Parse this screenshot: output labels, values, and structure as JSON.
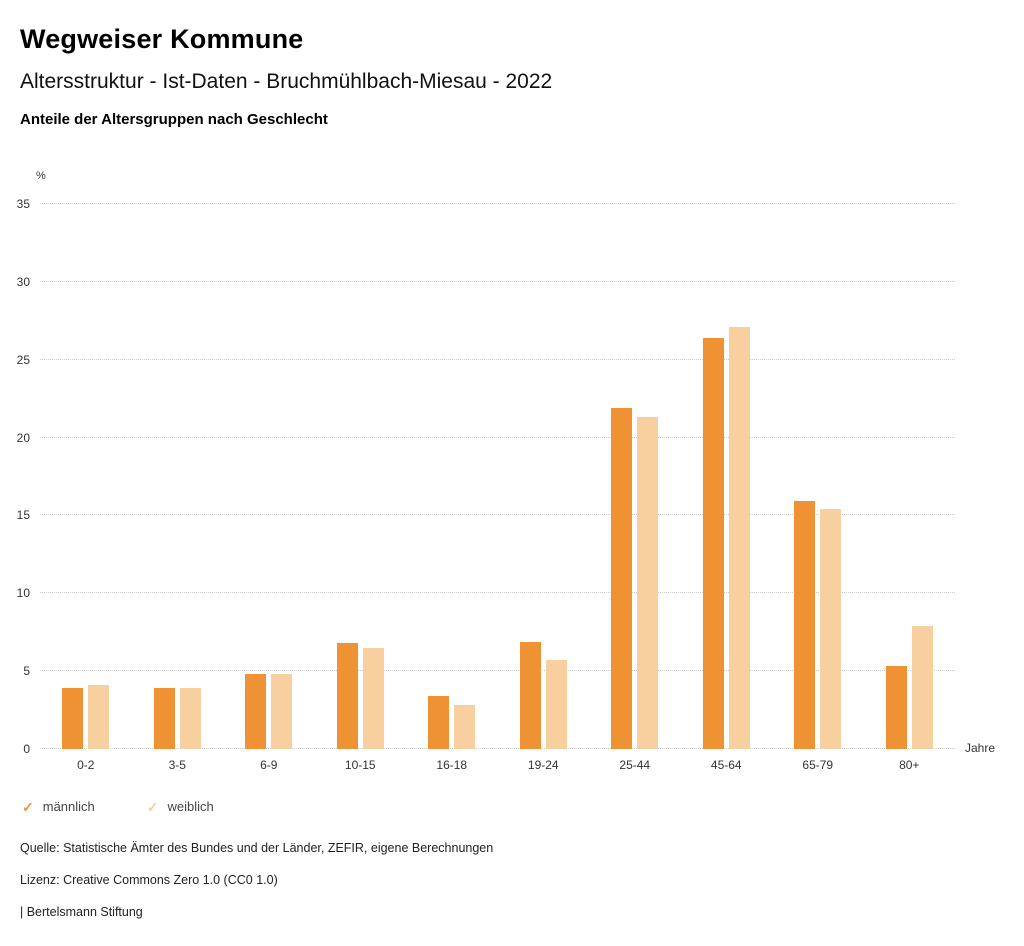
{
  "header": {
    "title": "Wegweiser Kommune",
    "subtitle": "Altersstruktur - Ist-Daten - Bruchmühlbach-Miesau - 2022",
    "subsubtitle": "Anteile der Altersgruppen nach Geschlecht"
  },
  "chart_data": {
    "type": "bar",
    "title": "Anteile der Altersgruppen nach Geschlecht",
    "categories": [
      "0-2",
      "3-5",
      "6-9",
      "10-15",
      "16-18",
      "19-24",
      "25-44",
      "45-64",
      "65-79",
      "80+"
    ],
    "series": [
      {
        "name": "männlich",
        "color": "#EF9234",
        "values": [
          3.9,
          3.9,
          4.8,
          6.8,
          3.4,
          6.9,
          21.9,
          26.4,
          15.9,
          5.3
        ]
      },
      {
        "name": "weiblich",
        "color": "#F8CF9E",
        "values": [
          4.1,
          3.9,
          4.8,
          6.5,
          2.8,
          5.7,
          21.3,
          27.1,
          15.4,
          7.9
        ]
      }
    ],
    "xlabel": "Jahre",
    "ylabel": "%",
    "ylim": [
      0,
      35
    ],
    "yticks": [
      0,
      5,
      10,
      15,
      20,
      25,
      30,
      35
    ],
    "grid": true,
    "legend_position": "bottom"
  },
  "legend": {
    "items": [
      {
        "label": "männlich",
        "color": "#EF9234"
      },
      {
        "label": "weiblich",
        "color": "#F8CF9E"
      }
    ]
  },
  "footer": {
    "source": "Quelle: Statistische Ämter des Bundes und der Länder, ZEFIR, eigene Berechnungen",
    "license": "Lizenz: Creative Commons Zero 1.0 (CC0 1.0)",
    "attribution": "| Bertelsmann Stiftung"
  }
}
